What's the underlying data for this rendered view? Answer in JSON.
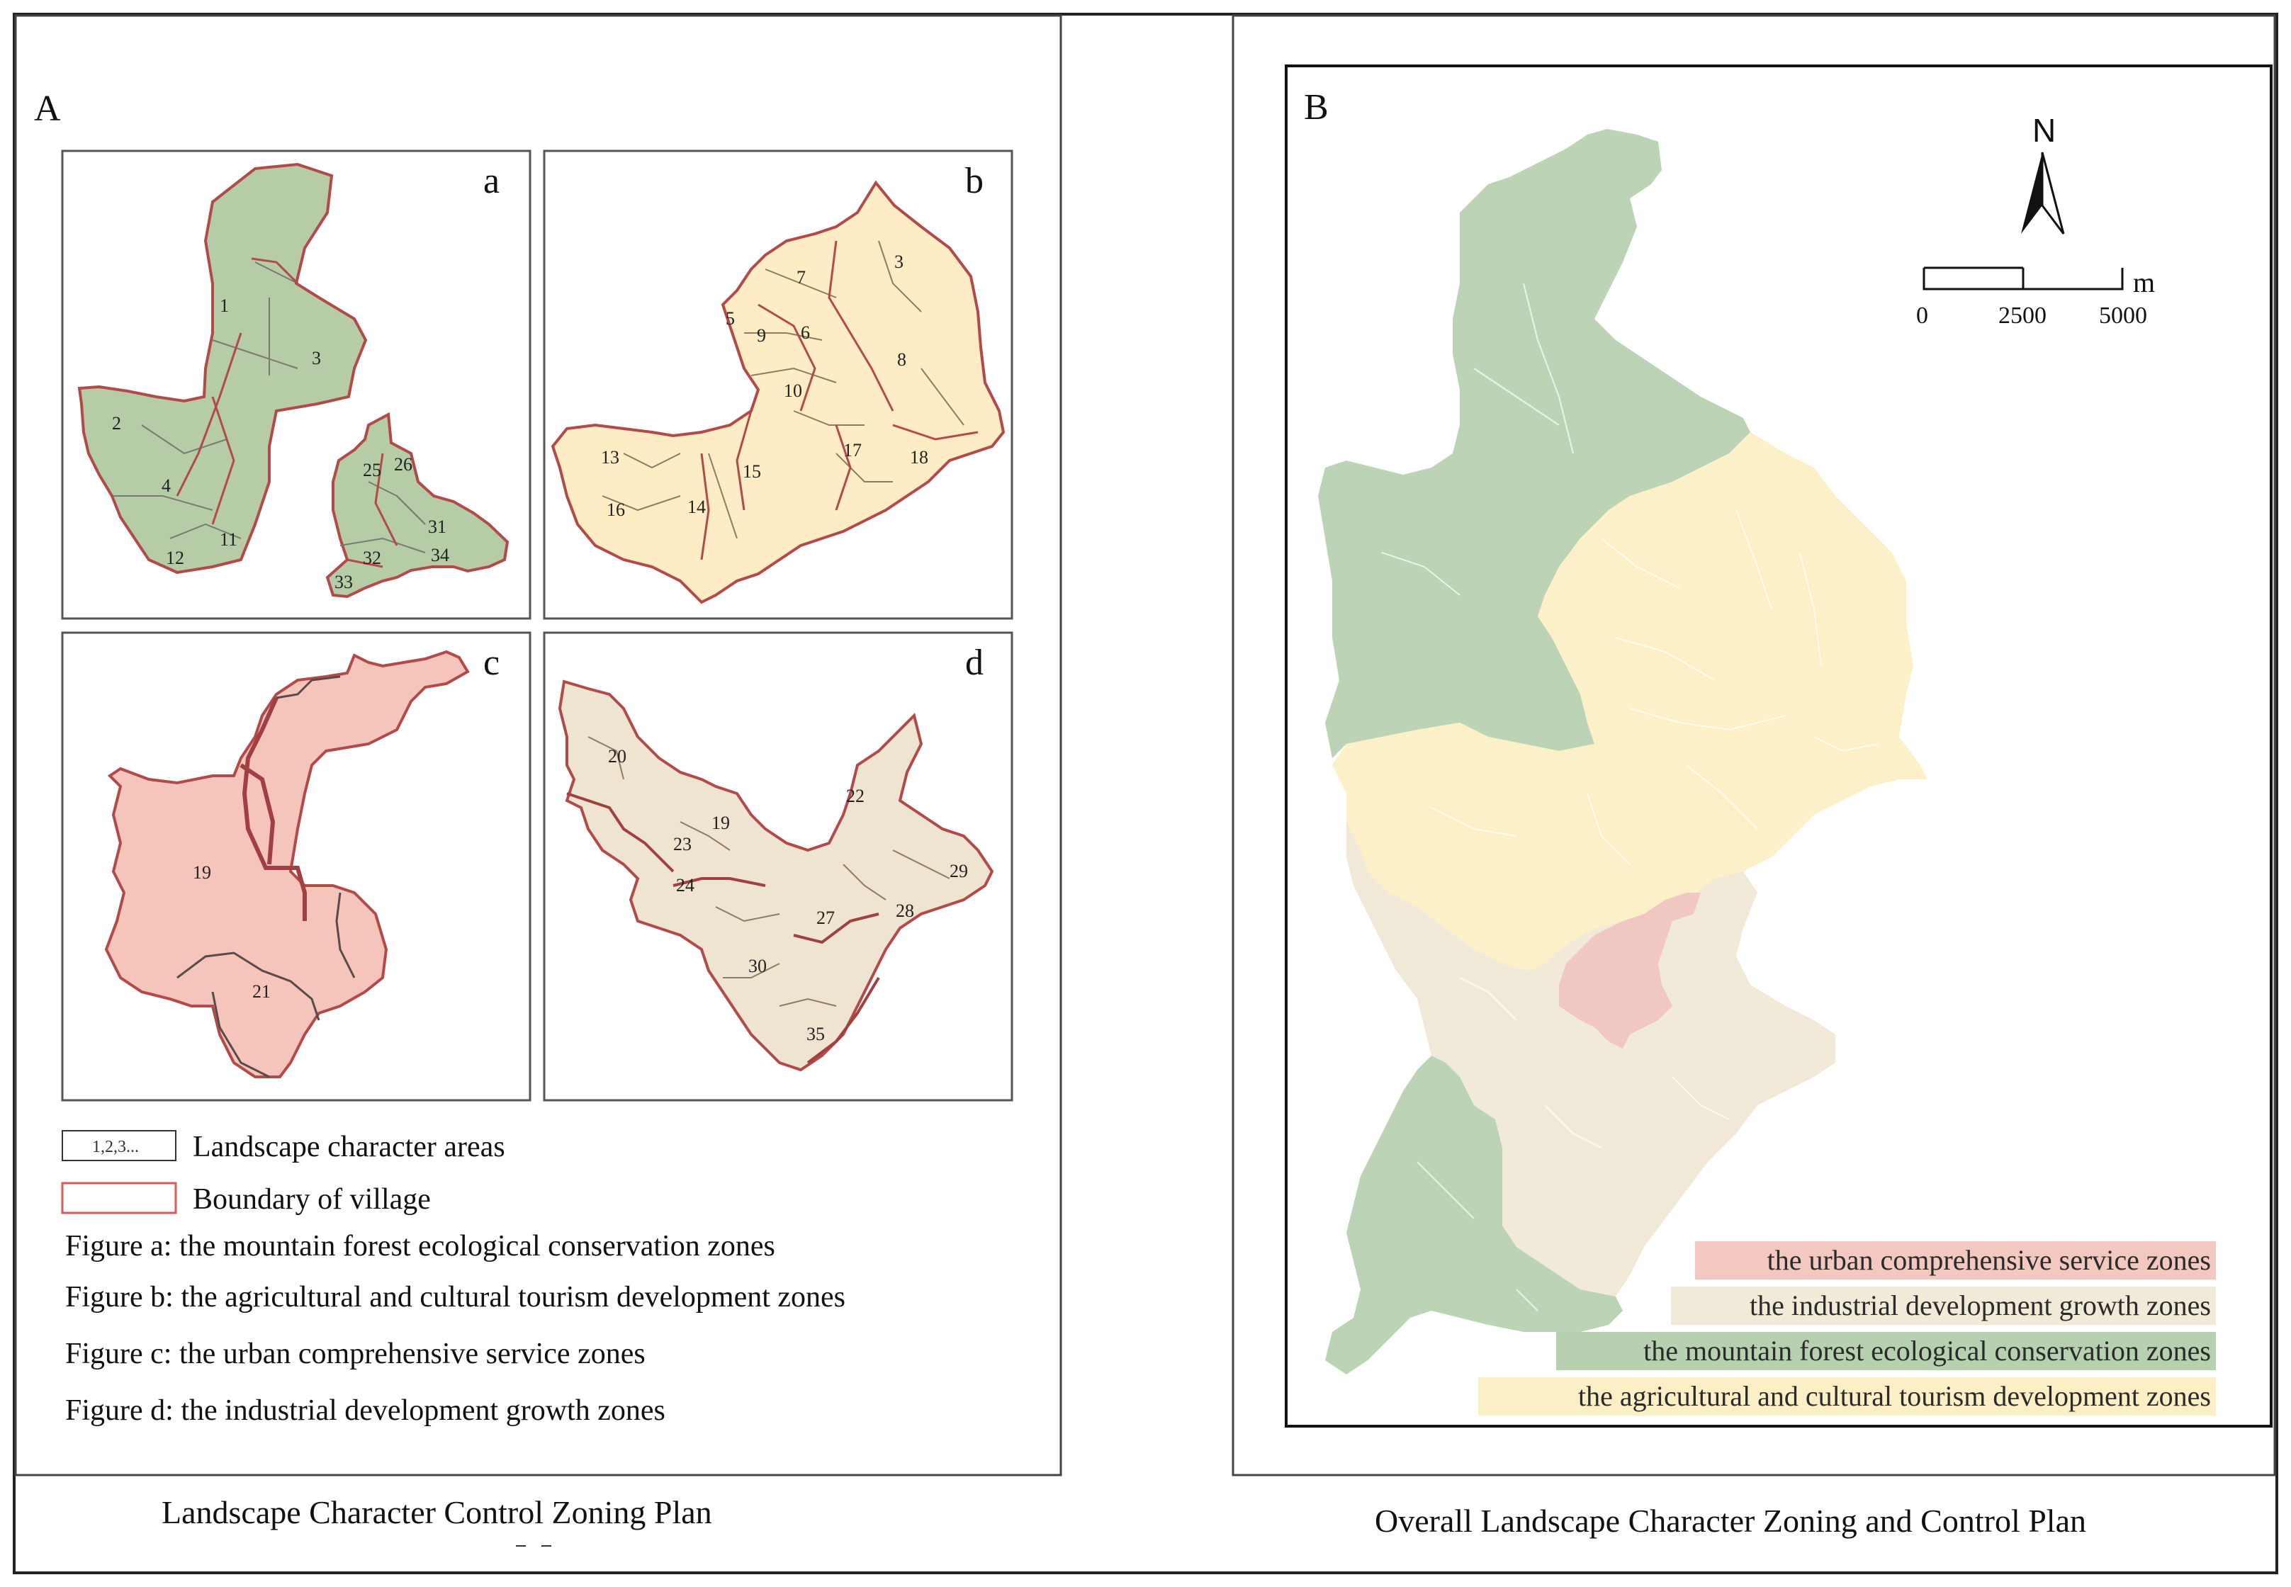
{
  "panel_a": {
    "letter": "A",
    "caption": "Landscape Character Control Zoning Plan",
    "maps": {
      "a": {
        "letter": "a",
        "color": "#b5cca7",
        "labels": [
          "1",
          "3",
          "2",
          "4",
          "11",
          "12",
          "25",
          "26",
          "31",
          "32",
          "34",
          "33"
        ]
      },
      "b": {
        "letter": "b",
        "color": "#fdecc4",
        "labels": [
          "7",
          "3",
          "5",
          "9",
          "6",
          "8",
          "10",
          "17",
          "18",
          "13",
          "15",
          "16",
          "14"
        ]
      },
      "c": {
        "letter": "c",
        "color": "#f5c4bb",
        "labels": [
          "19",
          "21"
        ]
      },
      "d": {
        "letter": "d",
        "color": "#efe4cf",
        "labels": [
          "20",
          "22",
          "23",
          "19",
          "29",
          "24",
          "27",
          "28",
          "30",
          "35"
        ]
      }
    },
    "legend": {
      "areas_symbol": "1,2,3...",
      "areas_label": "Landscape character areas",
      "boundary_label": "Boundary of village",
      "figure_a": "Figure a: the mountain forest ecological conservation zones",
      "figure_b": "Figure b: the agricultural and cultural tourism development zones",
      "figure_c": "Figure c: the urban comprehensive service zones",
      "figure_d": "Figure d: the industrial development growth zones"
    }
  },
  "panel_b": {
    "letter": "B",
    "caption": "Overall Landscape Character Zoning and Control Plan",
    "north": "N",
    "scale": {
      "unit": "m",
      "ticks": [
        "0",
        "2500",
        "5000"
      ]
    },
    "legend": [
      {
        "label": "the urban comprehensive service zones",
        "color": "#f3c8c0"
      },
      {
        "label": "the industrial development growth zones",
        "color": "#f2ead8"
      },
      {
        "label": "the mountain forest ecological conservation zones",
        "color": "#b7d1b0"
      },
      {
        "label": "the agricultural and cultural tourism development zones",
        "color": "#fbefc6"
      }
    ],
    "zone_colors": {
      "forest": "#bdd3b6",
      "agri": "#fcf0c8",
      "industrial": "#f2ead9",
      "urban": "#f1c8c1"
    }
  },
  "colors": {
    "boundary": "#b24a4a",
    "inner_line": "#7a7a6e",
    "frame": "#222222"
  }
}
